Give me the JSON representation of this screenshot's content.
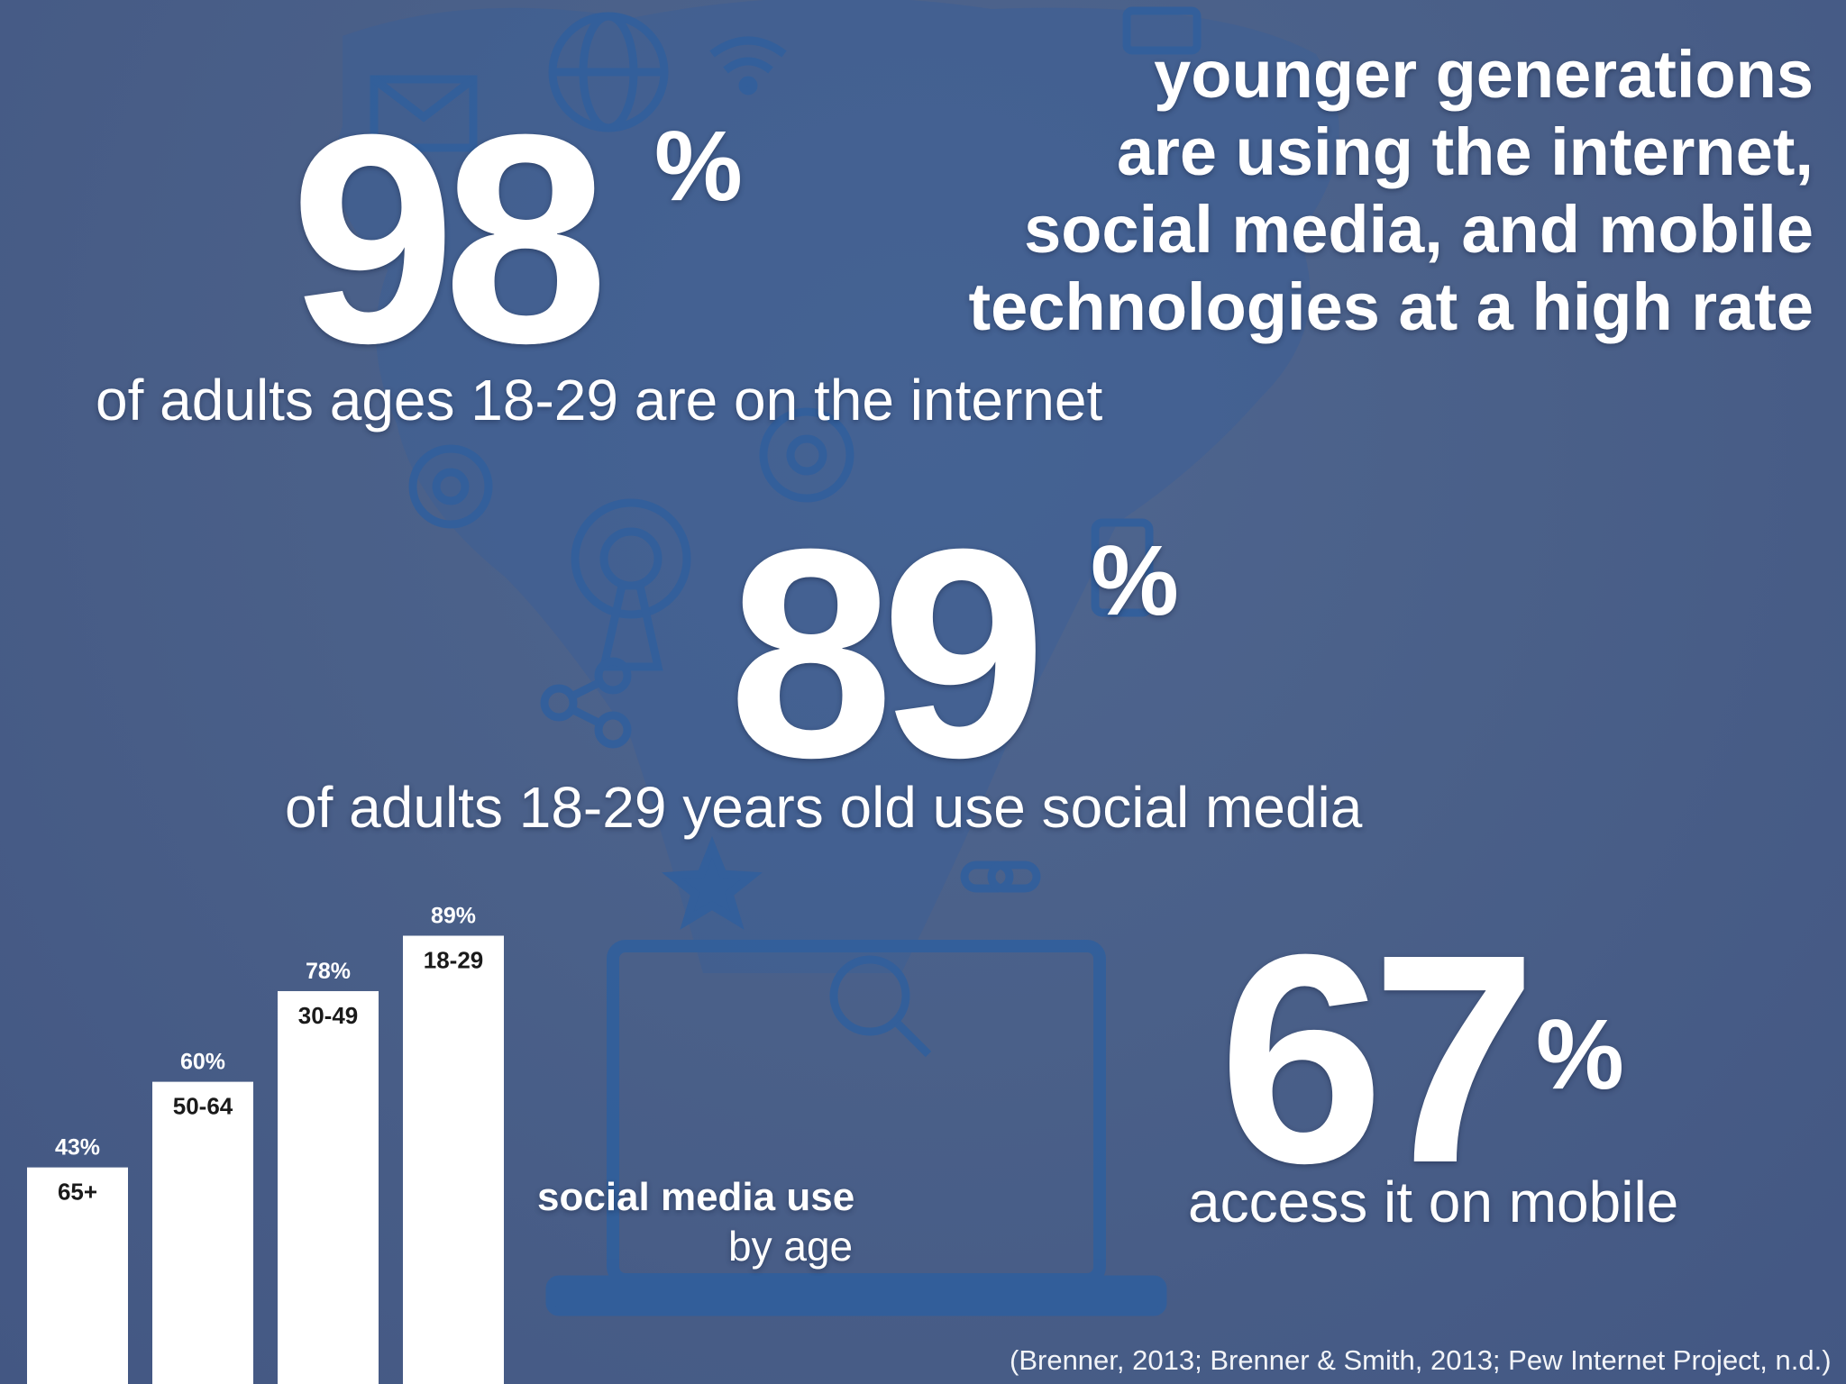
{
  "headline": {
    "lines": [
      "younger generations",
      "are using the internet,",
      "social media, and mobile",
      "technologies at a high rate"
    ]
  },
  "stats": {
    "internet": {
      "number": "98",
      "percent_sign": "%",
      "caption": "of adults ages 18-29 are on the internet"
    },
    "social": {
      "number": "89",
      "percent_sign": "%",
      "caption": "of adults 18-29 years old use social media"
    },
    "mobile": {
      "number": "67",
      "percent_sign": "%",
      "caption": "access it on mobile"
    }
  },
  "citation": "(Brenner, 2013; Brenner & Smith, 2013; Pew Internet Project, n.d.)",
  "chart_data": {
    "type": "bar",
    "title": "social media use",
    "subtitle": "by age",
    "categories": [
      "65+",
      "50-64",
      "30-49",
      "18-29"
    ],
    "values": [
      43,
      60,
      78,
      89
    ],
    "value_labels": [
      "43%",
      "60%",
      "78%",
      "89%"
    ],
    "unit": "%",
    "xlabel": "",
    "ylabel": "",
    "ylim": [
      0,
      100
    ],
    "grid": false,
    "legend": "none"
  },
  "colors": {
    "background": "#4a6089",
    "icon_art": "#2f5f9e",
    "bars": "#ffffff",
    "text": "#ffffff",
    "bar_label_text": "#1a1a1a"
  },
  "icons": [
    "wifi-icon",
    "globe-icon",
    "envelope-icon",
    "gear-icon",
    "at-sign-icon",
    "sms-icon",
    "phone-icon",
    "broadcast-tower-icon",
    "laptop-icon",
    "magnifier-icon",
    "cloud-icon",
    "star-icon",
    "chain-link-icon",
    "share-icon"
  ]
}
